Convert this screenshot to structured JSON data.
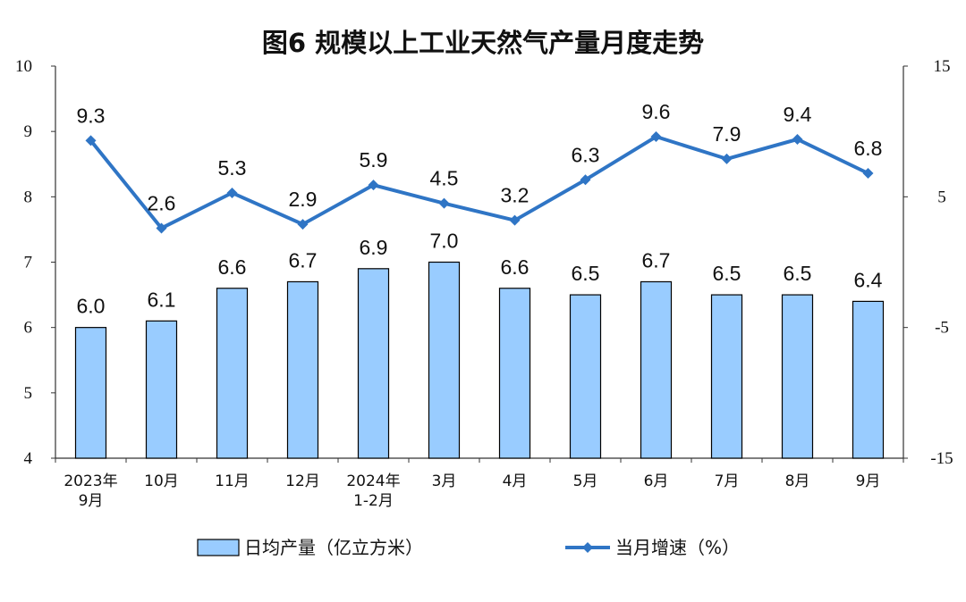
{
  "chart_data": {
    "type": "bar",
    "title": "图6  规模以上工业天然气产量月度走势",
    "categories": [
      [
        "2023年",
        "9月"
      ],
      [
        "10月"
      ],
      [
        "11月"
      ],
      [
        "12月"
      ],
      [
        "2024年",
        "1-2月"
      ],
      [
        "3月"
      ],
      [
        "4月"
      ],
      [
        "5月"
      ],
      [
        "6月"
      ],
      [
        "7月"
      ],
      [
        "8月"
      ],
      [
        "9月"
      ]
    ],
    "series": [
      {
        "name": "日均产量（亿立方米）",
        "type": "bar",
        "axis": "left",
        "values": [
          6.0,
          6.1,
          6.6,
          6.7,
          6.9,
          7.0,
          6.6,
          6.5,
          6.7,
          6.5,
          6.5,
          6.4
        ],
        "labels": [
          "6.0",
          "6.1",
          "6.6",
          "6.7",
          "6.9",
          "7.0",
          "6.6",
          "6.5",
          "6.7",
          "6.5",
          "6.5",
          "6.4"
        ],
        "color": "#99CCFF",
        "border": "#000000"
      },
      {
        "name": "当月增速（%）",
        "type": "line",
        "axis": "right",
        "values": [
          9.3,
          2.6,
          5.3,
          2.9,
          5.9,
          4.5,
          3.2,
          6.3,
          9.6,
          7.9,
          9.4,
          6.8
        ],
        "labels": [
          "9.3",
          "2.6",
          "5.3",
          "2.9",
          "5.9",
          "4.5",
          "3.2",
          "6.3",
          "9.6",
          "7.9",
          "9.4",
          "6.8"
        ],
        "color": "#2F75C5"
      }
    ],
    "y_left": {
      "min": 4,
      "max": 10,
      "ticks": [
        "4",
        "5",
        "6",
        "7",
        "8",
        "9",
        "10"
      ]
    },
    "y_right": {
      "min": -15,
      "max": 15,
      "ticks": [
        "-15",
        "-5",
        "5",
        "15"
      ]
    },
    "grid": false,
    "legend_position": "bottom"
  }
}
